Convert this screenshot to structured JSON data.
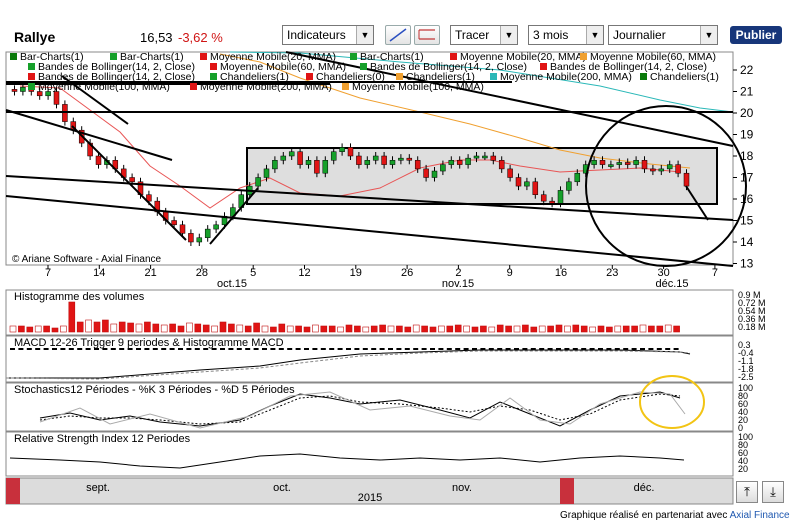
{
  "header": {
    "title": "Rallye",
    "price": "16,53",
    "change": "-3,62 %",
    "indicators_label": "Indicateurs",
    "tracer_label": "Tracer",
    "period_value": "3 mois",
    "interval_value": "Journalier",
    "publish_label": "Publier"
  },
  "legend": {
    "row1": [
      "Bar-Charts(1)",
      "Bar-Charts(1)",
      "Moyenne Mobile(20, MMA)",
      "Bar-Charts(1)",
      "Moyenne Mobile(20, MMA)",
      "Moyenne Mobile(60, MMA)"
    ],
    "row2": [
      "Bandes de Bollinger(14, 2, Close)",
      "Moyenne Mobile(60, MMA)",
      "Bandes de Bollinger(14, 2, Close)",
      "Bandes de Bollinger(14, 2, Close)"
    ],
    "row3": [
      "Bandes de Bollinger(14, 2, Close)",
      "Chandeliers(1)",
      "Chandeliers(0)",
      "Chandeliers(1)",
      "Moyenne Mobile(200, MMA)",
      "Chandeliers(1)"
    ],
    "row4": [
      "Moyenne Mobile(100, MMA)",
      "Moyenne Mobile(200, MMA)",
      "Moyenne Mobile(100, MMA)"
    ]
  },
  "main_chart": {
    "watermark": "© Ariane Software - Axial Finance",
    "y_ticks": [
      "22",
      "21",
      "20",
      "19",
      "18",
      "17",
      "16",
      "15",
      "14",
      "13"
    ],
    "x_ticks": [
      "7",
      "14",
      "21",
      "28",
      "5",
      "12",
      "19",
      "26",
      "2",
      "9",
      "16",
      "23",
      "30",
      "7"
    ],
    "month_labels": [
      "oct.15",
      "nov.15",
      "déc.15"
    ]
  },
  "volume_panel": {
    "title": "Histogramme des volumes",
    "y_ticks": [
      "0.9 M",
      "0.72 M",
      "0.54 M",
      "0.36 M",
      "0.18 M"
    ]
  },
  "macd_panel": {
    "title": "MACD 12-26   Trigger 9 periodes & Histogramme MACD",
    "y_ticks": [
      "0.3",
      "-0.4",
      "-1.1",
      "-1.8",
      "-2.5"
    ]
  },
  "stoch_panel": {
    "title": "Stochastics12 Périodes  -  %K 3 Périodes  -  %D 5 Périodes",
    "y_ticks": [
      "100",
      "80",
      "60",
      "40",
      "20",
      "0"
    ]
  },
  "rsi_panel": {
    "title": "Relative Strength Index 12 Periodes",
    "y_ticks": [
      "100",
      "80",
      "60",
      "40",
      "20"
    ]
  },
  "timeline": {
    "months": [
      "sept.",
      "oct.",
      "nov.",
      "déc."
    ],
    "year": "2015"
  },
  "footer": {
    "text": "Graphique réalisé en partenariat avec",
    "link": "Axial Finance"
  },
  "colors": {
    "up": "#16a02a",
    "down": "#e01414",
    "ma20": "#e85555",
    "ma60": "#f0a030",
    "ma100": "#2bb8b8",
    "publish": "#17367a"
  }
}
